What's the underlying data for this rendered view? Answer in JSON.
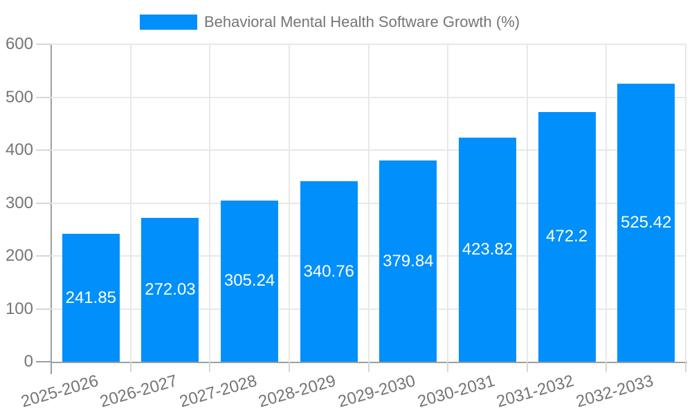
{
  "legend": {
    "label": "Behavioral Mental Health Software Growth (%)"
  },
  "chart_data": {
    "type": "bar",
    "title": "Behavioral Mental Health Software Growth (%)",
    "categories": [
      "2025-2026",
      "2026-2027",
      "2027-2028",
      "2028-2029",
      "2029-2030",
      "2030-2031",
      "2031-2032",
      "2032-2033"
    ],
    "series": [
      {
        "name": "Behavioral Mental Health Software Growth (%)",
        "values": [
          241.85,
          272.03,
          305.24,
          340.76,
          379.84,
          423.82,
          472.2,
          525.42
        ]
      }
    ],
    "xlabel": "",
    "ylabel": "",
    "ylim": [
      0,
      600
    ],
    "ytick_step": 100,
    "yticks": [
      0,
      100,
      200,
      300,
      400,
      500,
      600
    ],
    "grid": true,
    "legend_position": "top-center",
    "bar_label_position": "inside-center",
    "colors": {
      "bar": "#008FFB",
      "axis_text": "#757575",
      "axis_line": "#9e9e9e",
      "gridline": "#e8e8e8",
      "tick": "#d6d6d6",
      "bar_label_text": "#ffffff",
      "background": "#ffffff"
    }
  }
}
